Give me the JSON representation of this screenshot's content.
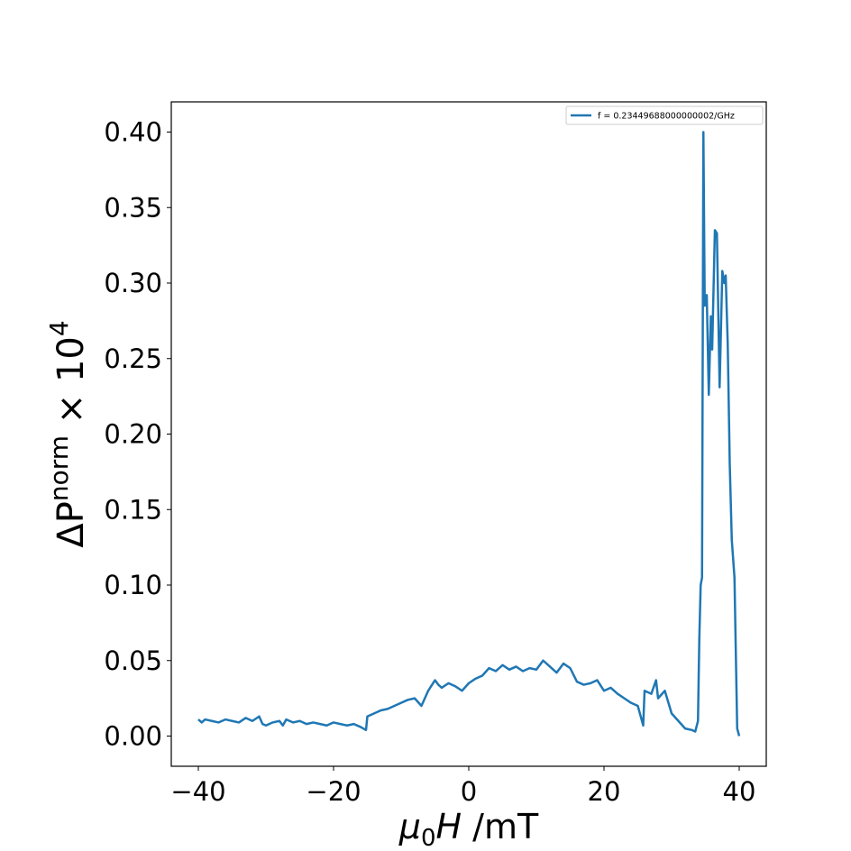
{
  "chart_data": {
    "type": "line",
    "xlabel": [
      "μ",
      "0",
      "H",
      " /mT"
    ],
    "ylabel": [
      "ΔP",
      "norm",
      " × 10",
      "4"
    ],
    "x": [
      -40,
      -39.5,
      -39,
      -38,
      -37,
      -36,
      -35,
      -34,
      -33,
      -32,
      -31,
      -30.5,
      -30,
      -29,
      -28,
      -27.5,
      -27,
      -26,
      -25,
      -24,
      -23,
      -22,
      -21,
      -20,
      -19,
      -18,
      -17,
      -16,
      -15.2,
      -15,
      -14,
      -13,
      -12,
      -11,
      -10,
      -9,
      -8,
      -7,
      -6,
      -5,
      -4.5,
      -4,
      -3,
      -2,
      -1,
      0,
      1,
      2,
      3,
      4,
      5,
      6,
      7,
      8,
      9,
      10,
      11,
      12,
      13,
      14,
      15,
      16,
      17,
      18,
      19,
      20,
      21,
      22,
      23,
      24,
      25,
      25.8,
      26,
      27,
      27.7,
      28,
      29,
      30,
      31,
      32,
      33,
      33.5,
      33.9,
      34.1,
      34.3,
      34.5,
      34.7,
      34.9,
      35.2,
      35.5,
      35.8,
      36.0,
      36.4,
      36.7,
      37.1,
      37.5,
      37.8,
      38.0,
      38.3,
      38.6,
      38.9,
      39.3,
      39.7,
      40
    ],
    "series": [
      {
        "name": "f = 0.23449688000000002/GHz",
        "color": "#1f77b4",
        "values": [
          0.011,
          0.009,
          0.011,
          0.01,
          0.009,
          0.011,
          0.01,
          0.009,
          0.012,
          0.01,
          0.013,
          0.008,
          0.007,
          0.009,
          0.01,
          0.007,
          0.011,
          0.009,
          0.01,
          0.008,
          0.009,
          0.008,
          0.007,
          0.009,
          0.008,
          0.007,
          0.008,
          0.006,
          0.004,
          0.013,
          0.015,
          0.017,
          0.018,
          0.02,
          0.022,
          0.024,
          0.025,
          0.02,
          0.03,
          0.037,
          0.034,
          0.032,
          0.035,
          0.033,
          0.03,
          0.035,
          0.038,
          0.04,
          0.045,
          0.043,
          0.047,
          0.044,
          0.046,
          0.043,
          0.045,
          0.044,
          0.05,
          0.046,
          0.042,
          0.048,
          0.045,
          0.036,
          0.034,
          0.035,
          0.037,
          0.03,
          0.032,
          0.028,
          0.025,
          0.022,
          0.02,
          0.007,
          0.03,
          0.028,
          0.037,
          0.025,
          0.03,
          0.015,
          0.01,
          0.005,
          0.004,
          0.003,
          0.01,
          0.065,
          0.1,
          0.105,
          0.4,
          0.285,
          0.292,
          0.226,
          0.278,
          0.256,
          0.335,
          0.333,
          0.231,
          0.308,
          0.3,
          0.305,
          0.26,
          0.18,
          0.13,
          0.105,
          0.005,
          0.0
        ]
      }
    ],
    "xlim": [
      -44,
      44
    ],
    "ylim": [
      -0.02,
      0.42
    ],
    "xticks": [
      {
        "value": -40,
        "label": "−40"
      },
      {
        "value": -20,
        "label": "−20"
      },
      0,
      20,
      40
    ],
    "yticks": [
      {
        "value": 0,
        "label": "0.00"
      },
      {
        "value": 0.05,
        "label": "0.05"
      },
      {
        "value": 0.1,
        "label": "0.10"
      },
      {
        "value": 0.15,
        "label": "0.15"
      },
      {
        "value": 0.2,
        "label": "0.20"
      },
      {
        "value": 0.25,
        "label": "0.25"
      },
      {
        "value": 0.3,
        "label": "0.30"
      },
      {
        "value": 0.35,
        "label": "0.35"
      },
      {
        "value": 0.4,
        "label": "0.40"
      }
    ],
    "legend": "upper right",
    "grid": false
  }
}
